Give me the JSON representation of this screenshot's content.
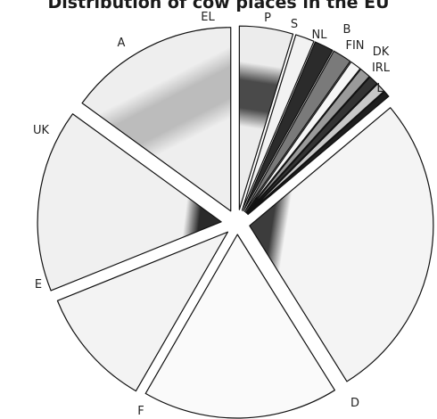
{
  "chart_data": {
    "type": "pie",
    "title": "Distribution of cow places in the EU",
    "start_angle_deg": 90,
    "direction": "clockwise",
    "exploded": true,
    "slices": [
      {
        "label": "EL",
        "angle_deg": 17,
        "fill": "#ececec",
        "fill2": "#4a4a4a",
        "texture": "band"
      },
      {
        "label": "P",
        "angle_deg": 6,
        "fill": "#f2f2f2",
        "fill2": "#f2f2f2",
        "texture": "none"
      },
      {
        "label": "S",
        "angle_deg": 6,
        "fill": "#2b2b2b",
        "fill2": "#2b2b2b",
        "texture": "none"
      },
      {
        "label": "NL",
        "angle_deg": 6,
        "fill": "#7a7a7a",
        "fill2": "#7a7a7a",
        "texture": "none"
      },
      {
        "label": "B",
        "angle_deg": 3.5,
        "fill": "#f6f6f6",
        "fill2": "#f6f6f6",
        "texture": "none"
      },
      {
        "label": "FIN",
        "angle_deg": 3.5,
        "fill": "#9a9a9a",
        "fill2": "#9a9a9a",
        "texture": "none"
      },
      {
        "label": "DK",
        "angle_deg": 3,
        "fill": "#333333",
        "fill2": "#333333",
        "texture": "none"
      },
      {
        "label": "IRL",
        "angle_deg": 3,
        "fill": "#c8c8c8",
        "fill2": "#c8c8c8",
        "texture": "none"
      },
      {
        "label": "L",
        "angle_deg": 2,
        "fill": "#1e1e1e",
        "fill2": "#1e1e1e",
        "texture": "none"
      },
      {
        "label": "D",
        "angle_deg": 98,
        "fill": "#f4f4f4",
        "fill2": "#3c3c3c",
        "texture": "corner"
      },
      {
        "label": "F",
        "angle_deg": 62,
        "fill": "#fafafa",
        "fill2": "#fafafa",
        "texture": "none"
      },
      {
        "label": "E",
        "angle_deg": 38,
        "fill": "#f3f3f3",
        "fill2": "#f3f3f3",
        "texture": "none"
      },
      {
        "label": "UK",
        "angle_deg": 58,
        "fill": "#f0f0f0",
        "fill2": "#2a2a2a",
        "texture": "corner"
      },
      {
        "label": "A",
        "angle_deg": 54,
        "fill": "#eeeeee",
        "fill2": "#bcbcbc",
        "texture": "band"
      }
    ]
  }
}
